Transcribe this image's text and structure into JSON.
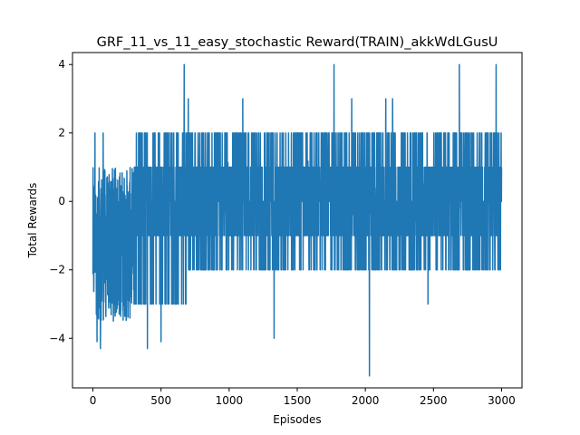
{
  "chart_data": {
    "type": "line",
    "title": "GRF_11_vs_11_easy_stochastic Reward(TRAIN)_akkWdLGusU",
    "xlabel": "Episodes",
    "ylabel": "Total Rewards",
    "xlim": [
      -150,
      3150
    ],
    "ylim": [
      -5.45,
      4.35
    ],
    "xticks": [
      0,
      500,
      1000,
      1500,
      2000,
      2500,
      3000
    ],
    "yticks": [
      -4,
      -2,
      0,
      2,
      4
    ],
    "xtick_labels": [
      "0",
      "500",
      "1000",
      "1500",
      "2000",
      "2500",
      "3000"
    ],
    "ytick_labels": [
      "−4",
      "−2",
      "0",
      "2",
      "4"
    ],
    "grid": false,
    "series_color": "#1f77b4",
    "series": [
      {
        "episodes": 3000,
        "phases": [
          {
            "from": 0,
            "to": 300,
            "min": -3.5,
            "max": 1.0,
            "center": -0.6
          },
          {
            "from": 300,
            "to": 700,
            "min": -3.0,
            "max": 2.0,
            "center": -0.1
          },
          {
            "from": 700,
            "to": 1500,
            "min": -2.0,
            "max": 2.0,
            "center": 0.2
          },
          {
            "from": 1500,
            "to": 3000,
            "min": -2.0,
            "max": 2.0,
            "center": 0.4
          }
        ],
        "extremes": [
          {
            "x": 15,
            "y": 2.0
          },
          {
            "x": 25,
            "y": -3.3
          },
          {
            "x": 30,
            "y": -4.1
          },
          {
            "x": 55,
            "y": -4.3
          },
          {
            "x": 75,
            "y": 2.0
          },
          {
            "x": 150,
            "y": -3.5
          },
          {
            "x": 400,
            "y": -4.3
          },
          {
            "x": 500,
            "y": -4.1
          },
          {
            "x": 670,
            "y": 4.0
          },
          {
            "x": 700,
            "y": 3.0
          },
          {
            "x": 1100,
            "y": 3.0
          },
          {
            "x": 1330,
            "y": -4.0
          },
          {
            "x": 1770,
            "y": 4.0
          },
          {
            "x": 2030,
            "y": -5.1
          },
          {
            "x": 2460,
            "y": -3.0
          },
          {
            "x": 2690,
            "y": 4.0
          },
          {
            "x": 2960,
            "y": 4.0
          },
          {
            "x": 2150,
            "y": 3.0
          },
          {
            "x": 2200,
            "y": 3.0
          },
          {
            "x": 1900,
            "y": 3.0
          }
        ]
      }
    ]
  }
}
